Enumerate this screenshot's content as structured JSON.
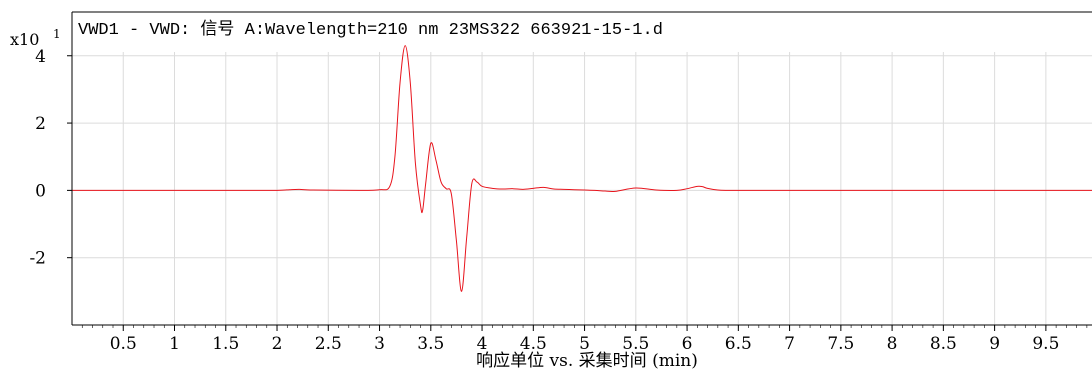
{
  "chart_data": {
    "type": "line",
    "title": "VWD1 - VWD: 信号 A:Wavelength=210 nm 23MS322 663921-15-1.d",
    "xlabel": "响应单位 vs. 采集时间 (min)",
    "ylabel": "",
    "y_multiplier_label": "x10",
    "y_multiplier_exponent": "1",
    "xlim": [
      0,
      9.95
    ],
    "ylim": [
      -4.0,
      5.3
    ],
    "x_ticks": [
      0.5,
      1,
      1.5,
      2,
      2.5,
      3,
      3.5,
      4,
      4.5,
      5,
      5.5,
      6,
      6.5,
      7,
      7.5,
      8,
      8.5,
      9,
      9.5
    ],
    "x_tick_labels": [
      "0.5",
      "1",
      "1.5",
      "2",
      "2.5",
      "3",
      "3.5",
      "4",
      "4.5",
      "5",
      "5.5",
      "6",
      "6.5",
      "7",
      "7.5",
      "8",
      "8.5",
      "9",
      "9.5"
    ],
    "y_ticks": [
      4,
      2,
      0,
      -2
    ],
    "y_tick_labels": [
      "4",
      "2",
      "0",
      "-2"
    ],
    "grid": true,
    "series": [
      {
        "color": "#e8141c",
        "x": [
          0,
          1.5,
          2.0,
          2.12,
          2.22,
          2.35,
          2.8,
          3.0,
          3.1,
          3.15,
          3.2,
          3.25,
          3.3,
          3.35,
          3.4,
          3.42,
          3.45,
          3.5,
          3.55,
          3.6,
          3.65,
          3.7,
          3.75,
          3.8,
          3.85,
          3.9,
          3.95,
          4.0,
          4.1,
          4.2,
          4.3,
          4.4,
          4.5,
          4.6,
          4.7,
          4.8,
          4.9,
          5.0,
          5.1,
          5.2,
          5.3,
          5.5,
          5.7,
          5.9,
          6.0,
          6.1,
          6.15,
          6.2,
          6.3,
          6.4,
          6.6,
          7.0,
          8.0,
          9.0,
          9.95
        ],
        "y": [
          0,
          0,
          0,
          0.02,
          0.03,
          0.01,
          0,
          0.02,
          0.12,
          1.0,
          3.2,
          4.3,
          3.2,
          0.8,
          -0.45,
          -0.6,
          0.2,
          1.4,
          0.9,
          0.25,
          0.05,
          -0.1,
          -1.5,
          -3.0,
          -1.4,
          0.2,
          0.25,
          0.12,
          0.06,
          0.04,
          0.05,
          0.03,
          0.06,
          0.09,
          0.04,
          0.03,
          0.02,
          0.01,
          0.0,
          -0.02,
          -0.03,
          0.07,
          0.01,
          0.0,
          0.05,
          0.12,
          0.11,
          0.06,
          0.01,
          0.0,
          0.0,
          0.0,
          0.0,
          0.0,
          0.0
        ]
      }
    ]
  }
}
